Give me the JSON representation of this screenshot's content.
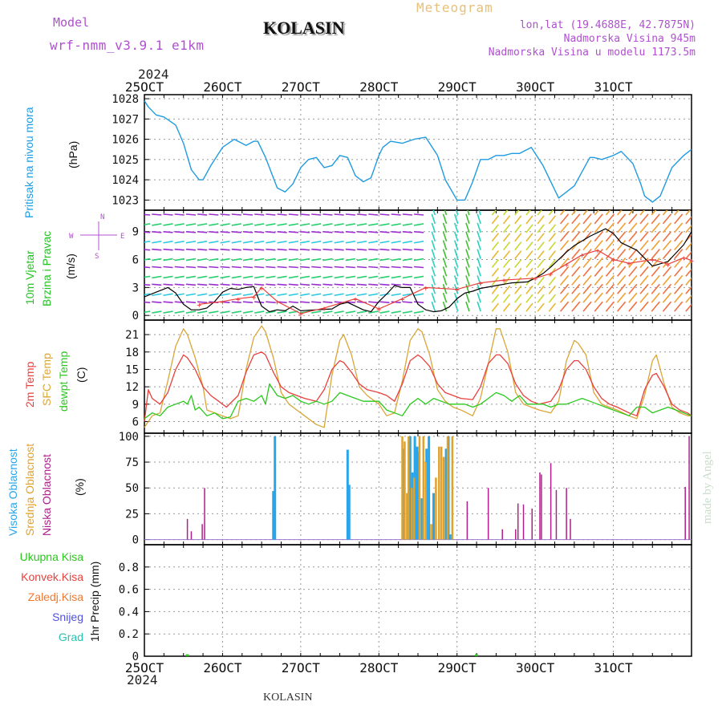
{
  "header": {
    "model_label": "Model",
    "model_name": "wrf-nmm_v3.9.1  e1km",
    "title": "KOLASIN",
    "product": "Meteogram",
    "lonlat": "lon,lat (19.4688E, 42.7875N)",
    "elevation": "Nadmorska Visina 945m",
    "model_elevation": "Nadmorska Visina u modelu 1173.5m",
    "year_top": "2024",
    "year_bottom": "2024",
    "footer": "KOLASIN",
    "credit": "made by Angel"
  },
  "colors": {
    "pressure": "#1f9be0",
    "t2m": "#e8403c",
    "tsfc": "#d9a637",
    "dewpt": "#2ac81c",
    "high_cloud": "#2aa5e8",
    "mid_cloud": "#e0a22c",
    "low_cloud": "#b0208a",
    "total_precip": "#2ac81c",
    "conv_precip": "#e8403c",
    "freezing_precip": "#f07830",
    "snow": "#5050e0",
    "hail": "#26c4b0",
    "wind_label": "#22c322",
    "dir_label": "#b050d0"
  },
  "chart_data": [
    {
      "type": "line",
      "panel": "pressure",
      "ylabel_colored": "Pritisak na nivou mora",
      "ylabel": "(hPa)",
      "x_ticks": [
        "25OCT",
        "26OCT",
        "27OCT",
        "28OCT",
        "29OCT",
        "30OCT",
        "31OCT"
      ],
      "ylim": [
        1022.5,
        1028.2
      ],
      "y_ticks": [
        "1023",
        "1024",
        "1025",
        "1026",
        "1027",
        "1028"
      ],
      "grid": true,
      "series": [
        {
          "x_days": [
            0,
            0.05,
            0.15,
            0.25,
            0.4,
            0.5,
            0.6,
            0.7,
            0.75,
            0.85,
            1.0,
            1.15,
            1.3,
            1.4,
            1.45,
            1.55,
            1.7,
            1.8,
            1.9,
            2.0,
            2.1,
            2.2,
            2.3,
            2.4,
            2.5,
            2.6,
            2.7,
            2.8,
            2.9,
            3.0,
            3.05,
            3.15,
            3.3,
            3.45,
            3.6,
            3.75,
            3.85,
            4.0,
            4.1,
            4.2,
            4.3,
            4.4,
            4.5,
            4.6,
            4.7,
            4.8,
            4.85,
            4.95,
            5.1,
            5.3,
            5.5,
            5.7,
            5.75,
            5.85,
            6.0,
            6.1,
            6.25,
            6.35,
            6.4,
            6.5,
            6.6,
            6.75,
            6.9,
            7.0
          ],
          "values": [
            1027.9,
            1027.6,
            1027.2,
            1027.1,
            1026.7,
            1025.8,
            1024.5,
            1024.0,
            1024.0,
            1024.7,
            1025.6,
            1026.0,
            1025.7,
            1025.9,
            1025.9,
            1025.1,
            1023.6,
            1023.4,
            1023.8,
            1024.6,
            1025.0,
            1025.1,
            1024.6,
            1024.7,
            1025.2,
            1025.1,
            1024.2,
            1023.9,
            1024.1,
            1025.2,
            1025.6,
            1025.9,
            1025.8,
            1026.0,
            1026.1,
            1025.2,
            1024.0,
            1023.0,
            1023.0,
            1023.9,
            1025.0,
            1025.0,
            1025.2,
            1025.2,
            1025.3,
            1025.3,
            1025.4,
            1025.6,
            1024.7,
            1023.1,
            1023.7,
            1025.1,
            1025.1,
            1025.0,
            1025.2,
            1025.4,
            1024.8,
            1023.8,
            1023.2,
            1022.9,
            1023.2,
            1024.6,
            1025.2,
            1025.5
          ]
        }
      ]
    },
    {
      "type": "line",
      "panel": "wind",
      "ylabel_colored": "10m Vjetar",
      "ylabel_colored2": "Brzina i Pravac",
      "ylabel": "(m/s)",
      "direction_legend_top": "N",
      "direction_legend_left": "W",
      "direction_legend_right": "E",
      "direction_legend_bottom": "S",
      "ylim": [
        -0.5,
        11.3
      ],
      "y_ticks": [
        "0",
        "3",
        "6",
        "9"
      ],
      "grid": true,
      "series": [
        {
          "name": "speed",
          "x_days": [
            0,
            0.15,
            0.3,
            0.4,
            0.5,
            0.6,
            0.7,
            0.8,
            0.9,
            1.0,
            1.1,
            1.2,
            1.3,
            1.4,
            1.45,
            1.5,
            1.6,
            1.7,
            1.8,
            1.9,
            2.0,
            2.2,
            2.4,
            2.5,
            2.6,
            2.7,
            2.8,
            2.9,
            3.0,
            3.1,
            3.2,
            3.3,
            3.4,
            3.5,
            3.6,
            3.7,
            3.8,
            3.9,
            4.0,
            4.1,
            4.2,
            4.3,
            4.5,
            4.7,
            4.9,
            5.0,
            5.1,
            5.2,
            5.3,
            5.4,
            5.5,
            5.7,
            5.9,
            6.0,
            6.1,
            6.3,
            6.5,
            6.7,
            6.9,
            7.0
          ],
          "values": [
            2.0,
            2.5,
            3.0,
            2.4,
            1.2,
            0.6,
            0.6,
            0.8,
            1.5,
            2.5,
            2.9,
            2.8,
            3.0,
            3.1,
            2.0,
            1.0,
            0.4,
            0.6,
            0.5,
            1.0,
            0.5,
            0.6,
            0.7,
            1.2,
            1.4,
            1.0,
            0.6,
            0.4,
            1.5,
            2.3,
            3.2,
            3.0,
            3.0,
            1.2,
            0.6,
            0.4,
            0.5,
            0.9,
            1.8,
            2.4,
            2.6,
            2.9,
            3.2,
            3.5,
            3.6,
            4.0,
            4.5,
            5.2,
            6.0,
            6.8,
            7.5,
            8.5,
            9.3,
            8.8,
            7.8,
            7.0,
            5.3,
            5.8,
            7.6,
            9.0
          ]
        },
        {
          "name": "gust",
          "x_days": [
            0.7,
            1.0,
            1.2,
            1.4,
            1.5,
            1.7,
            2.0,
            2.3,
            2.7,
            3.0,
            3.3,
            3.6,
            4.0,
            4.3,
            4.6,
            5.0,
            5.2,
            5.4,
            5.6,
            5.8,
            6.0,
            6.2,
            6.5,
            6.7,
            6.9,
            7.0
          ],
          "values": [
            1.2,
            1.5,
            1.8,
            2.0,
            3.0,
            1.5,
            0.2,
            0.8,
            1.8,
            0.7,
            1.8,
            3.0,
            2.8,
            3.5,
            3.8,
            4.0,
            4.5,
            5.5,
            6.5,
            7.0,
            6.0,
            5.6,
            6.0,
            5.5,
            6.2,
            5.9
          ]
        }
      ]
    },
    {
      "type": "line",
      "panel": "temperature",
      "ylabel_t2m": "2m Temp",
      "ylabel_tsfc": "SFC Temp",
      "ylabel_dewpt": "dewpt Temp",
      "ylabel": "(C)",
      "ylim": [
        4.0,
        23.5
      ],
      "y_ticks": [
        "6",
        "9",
        "12",
        "15",
        "18",
        "21"
      ],
      "grid": true,
      "series": [
        {
          "name": "2m Temp",
          "x_days": [
            0,
            0.05,
            0.1,
            0.2,
            0.3,
            0.4,
            0.5,
            0.55,
            0.65,
            0.75,
            0.85,
            0.95,
            1.05,
            1.2,
            1.3,
            1.4,
            1.5,
            1.55,
            1.65,
            1.75,
            1.85,
            1.95,
            2.05,
            2.2,
            2.3,
            2.4,
            2.5,
            2.55,
            2.65,
            2.75,
            2.85,
            3.0,
            3.1,
            3.2,
            3.3,
            3.4,
            3.5,
            3.55,
            3.65,
            3.75,
            3.85,
            3.95,
            4.05,
            4.2,
            4.3,
            4.4,
            4.5,
            4.55,
            4.65,
            4.75,
            4.85,
            4.95,
            5.05,
            5.2,
            5.3,
            5.4,
            5.5,
            5.55,
            5.65,
            5.75,
            5.85,
            5.95,
            6.05,
            6.2,
            6.3,
            6.4,
            6.5,
            6.55,
            6.65,
            6.75,
            6.85,
            6.95,
            7.0
          ],
          "values": [
            6.0,
            11.5,
            10.0,
            9.0,
            11.0,
            15.0,
            17.5,
            17.0,
            15.0,
            12.0,
            10.5,
            9.5,
            8.5,
            10.5,
            14.5,
            17.5,
            18.0,
            17.5,
            14.5,
            12.0,
            11.0,
            10.5,
            10.0,
            9.5,
            11.5,
            15.0,
            16.5,
            16.2,
            14.5,
            12.5,
            11.5,
            11.0,
            10.5,
            9.5,
            12.5,
            16.5,
            17.5,
            17.0,
            15.5,
            12.5,
            11.0,
            10.5,
            10.0,
            9.8,
            12.0,
            16.0,
            17.5,
            17.5,
            16.0,
            12.5,
            10.5,
            9.5,
            9.0,
            9.5,
            11.5,
            15.0,
            16.5,
            16.5,
            15.0,
            12.0,
            10.0,
            9.0,
            8.5,
            7.5,
            7.0,
            11.5,
            14.0,
            14.3,
            12.0,
            9.0,
            8.0,
            7.5,
            7.0
          ]
        },
        {
          "name": "SFC Temp",
          "x_days": [
            0,
            0.05,
            0.1,
            0.2,
            0.3,
            0.4,
            0.5,
            0.55,
            0.65,
            0.75,
            0.8,
            0.9,
            1.0,
            1.1,
            1.2,
            1.3,
            1.4,
            1.5,
            1.55,
            1.65,
            1.75,
            1.85,
            1.95,
            2.05,
            2.2,
            2.3,
            2.4,
            2.5,
            2.55,
            2.65,
            2.75,
            2.85,
            3.0,
            3.1,
            3.2,
            3.3,
            3.4,
            3.5,
            3.55,
            3.65,
            3.75,
            3.85,
            3.95,
            4.05,
            4.2,
            4.3,
            4.4,
            4.5,
            4.55,
            4.65,
            4.75,
            4.85,
            4.95,
            5.05,
            5.2,
            5.3,
            5.4,
            5.5,
            5.55,
            5.65,
            5.75,
            5.85,
            5.95,
            6.05,
            6.2,
            6.3,
            6.4,
            6.5,
            6.55,
            6.65,
            6.75,
            6.85,
            6.95,
            7.0
          ],
          "values": [
            5.0,
            6.0,
            7.0,
            7.5,
            13.0,
            19.0,
            22.0,
            21.0,
            17.0,
            12.0,
            8.0,
            7.5,
            7.0,
            6.5,
            7.0,
            15.0,
            20.5,
            22.5,
            21.5,
            17.0,
            11.0,
            9.0,
            8.0,
            7.0,
            5.5,
            5.0,
            14.0,
            20.0,
            21.0,
            17.5,
            12.0,
            10.5,
            9.0,
            7.0,
            7.5,
            13.0,
            20.0,
            22.0,
            21.5,
            17.5,
            11.5,
            9.5,
            8.5,
            8.0,
            7.0,
            10.0,
            16.0,
            22.0,
            22.0,
            18.0,
            11.0,
            9.0,
            8.5,
            8.0,
            7.5,
            9.5,
            16.5,
            20.0,
            19.5,
            17.5,
            11.0,
            9.0,
            8.5,
            8.0,
            7.0,
            6.5,
            10.5,
            16.5,
            17.5,
            12.5,
            8.5,
            7.5,
            7.0,
            7.0
          ]
        },
        {
          "name": "dewpt Temp",
          "x_days": [
            0,
            0.1,
            0.2,
            0.3,
            0.4,
            0.5,
            0.55,
            0.6,
            0.65,
            0.7,
            0.8,
            0.9,
            1.0,
            1.1,
            1.2,
            1.3,
            1.4,
            1.5,
            1.55,
            1.6,
            1.7,
            1.8,
            1.9,
            2.0,
            2.1,
            2.2,
            2.3,
            2.4,
            2.5,
            2.6,
            2.7,
            2.8,
            2.9,
            3.0,
            3.1,
            3.2,
            3.3,
            3.4,
            3.5,
            3.6,
            3.7,
            3.8,
            3.9,
            4.0,
            4.1,
            4.2,
            4.3,
            4.4,
            4.5,
            4.6,
            4.7,
            4.8,
            4.9,
            5.0,
            5.1,
            5.2,
            5.3,
            5.4,
            5.5,
            5.6,
            5.7,
            5.8,
            5.9,
            6.0,
            6.1,
            6.2,
            6.3,
            6.4,
            6.5,
            6.6,
            6.7,
            6.8,
            6.9,
            7.0
          ],
          "values": [
            6.5,
            7.5,
            7.0,
            8.5,
            9.0,
            9.5,
            9.0,
            10.5,
            8.0,
            8.5,
            7.0,
            7.5,
            6.5,
            6.8,
            9.5,
            10.0,
            9.5,
            10.5,
            9.0,
            12.5,
            10.5,
            10.0,
            10.5,
            9.5,
            9.0,
            9.5,
            9.0,
            9.5,
            11.0,
            10.5,
            10.0,
            9.5,
            9.5,
            9.5,
            8.0,
            7.5,
            7.0,
            9.0,
            10.0,
            9.0,
            10.0,
            9.5,
            9.0,
            9.0,
            9.0,
            8.5,
            9.0,
            10.0,
            11.0,
            10.5,
            9.5,
            10.5,
            9.0,
            9.0,
            9.0,
            8.5,
            9.0,
            9.0,
            9.5,
            10.0,
            9.5,
            9.0,
            8.5,
            8.0,
            7.5,
            7.0,
            8.5,
            8.5,
            7.5,
            8.0,
            8.5,
            8.0,
            7.5,
            7.0
          ]
        }
      ]
    },
    {
      "type": "bar",
      "panel": "clouds",
      "ylabel_high": "Visoka Oblacnost",
      "ylabel_mid": "Srednja Oblacnost",
      "ylabel_low": "Niska Oblacnost",
      "ylabel": "(%)",
      "ylim": [
        -5,
        103
      ],
      "y_ticks": [
        "0",
        "25",
        "50",
        "75",
        "100"
      ],
      "grid": true,
      "series": [
        {
          "name": "Visoka Oblacnost",
          "x_days": [
            1.65,
            1.67,
            2.6,
            2.62,
            2.64,
            3.32,
            3.4,
            3.43,
            3.46,
            3.49,
            3.5,
            3.55,
            3.61,
            3.64,
            3.7,
            3.86,
            3.89,
            3.92
          ],
          "values": [
            47,
            100,
            87,
            53,
            0,
            88,
            100,
            65,
            100,
            90,
            85,
            40,
            88,
            100,
            45,
            88,
            100,
            5
          ]
        },
        {
          "name": "Srednja Oblacnost",
          "x_days": [
            3.3,
            3.33,
            3.36,
            3.38,
            3.42,
            3.45,
            3.52,
            3.57,
            3.6,
            3.67,
            3.73,
            3.77,
            3.8,
            3.83,
            3.88,
            3.94
          ],
          "values": [
            100,
            95,
            45,
            100,
            50,
            60,
            100,
            100,
            75,
            15,
            60,
            90,
            90,
            80,
            100,
            100
          ]
        },
        {
          "name": "Niska Oblacnost",
          "x_days": [
            0.55,
            0.6,
            0.74,
            0.77,
            4.13,
            4.4,
            4.58,
            4.75,
            4.78,
            4.85,
            4.96,
            5.06,
            5.08,
            5.2,
            5.27,
            5.4,
            5.45,
            6.92,
            6.97
          ],
          "values": [
            20,
            8,
            15,
            50,
            37,
            50,
            10,
            10,
            35,
            34,
            30,
            65,
            63,
            74,
            48,
            50,
            20,
            51,
            100
          ]
        }
      ]
    },
    {
      "type": "bar",
      "panel": "precip",
      "legend": [
        "Ukupna Kisa",
        "Konvek.Kisa",
        "Zaledj.Kisa",
        "Snijeg",
        "Grad"
      ],
      "ylabel": "1hr Precip (mm)",
      "ylim": [
        0,
        1.0
      ],
      "y_ticks": [
        "0",
        "0.2",
        "0.4",
        "0.6",
        "0.8"
      ],
      "grid": true,
      "series": [
        {
          "name": "Ukupna Kisa",
          "x_days": [
            0.55,
            4.25
          ],
          "values": [
            0.01,
            0.01
          ]
        }
      ]
    }
  ]
}
